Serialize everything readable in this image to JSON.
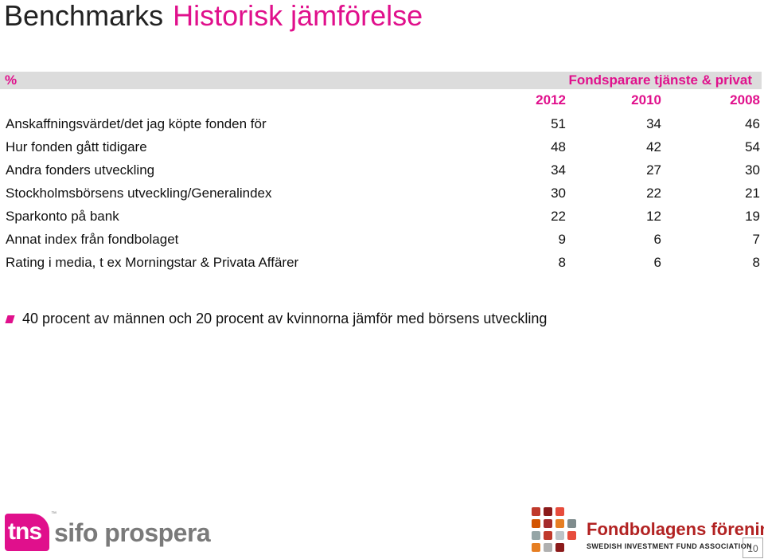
{
  "title": {
    "part1": "Benchmarks",
    "part2": "Historisk jämförelse"
  },
  "table": {
    "unit_label": "%",
    "group_title": "Fondsparare tjänste & privat",
    "years": [
      "2012",
      "2010",
      "2008"
    ],
    "rows": [
      {
        "label": "Anskaffningsvärdet/det jag köpte fonden för",
        "values": [
          "51",
          "34",
          "46"
        ]
      },
      {
        "label": "Hur fonden gått tidigare",
        "values": [
          "48",
          "42",
          "54"
        ]
      },
      {
        "label": "Andra fonders utveckling",
        "values": [
          "34",
          "27",
          "30"
        ]
      },
      {
        "label": "Stockholmsbörsens utveckling/Generalindex",
        "values": [
          "30",
          "22",
          "21"
        ]
      },
      {
        "label": "Sparkonto på bank",
        "values": [
          "22",
          "12",
          "19"
        ]
      },
      {
        "label": "Annat index från fondbolaget",
        "values": [
          "9",
          "6",
          "7"
        ]
      },
      {
        "label": "Rating i media, t ex Morningstar & Privata Affärer",
        "values": [
          "8",
          "6",
          "8"
        ]
      }
    ]
  },
  "note": "40 procent av männen och 20 procent av kvinnorna jämför med börsens utveckling",
  "footer": {
    "tns": {
      "mark": "tns",
      "tm": "™",
      "name": "sifo prospera"
    },
    "fondbolagen": {
      "name": "Fondbolagens förening",
      "sub": "SWEDISH INVESTMENT FUND ASSOCIATION"
    },
    "page_number": "10"
  },
  "colors": {
    "accent": "#e0108c",
    "header_bg": "#dcdcdc",
    "fond_red": "#b22222"
  }
}
